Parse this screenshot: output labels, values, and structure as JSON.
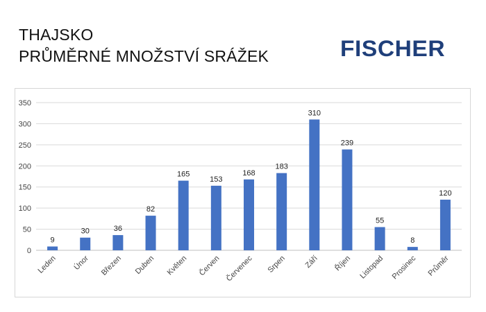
{
  "title_line1": "THAJSKO",
  "title_line2": "PRŮMĚRNÉ MNOŽSTVÍ SRÁŽEK",
  "logo_text": "FISCHER",
  "colors": {
    "bar": "#4472c4",
    "grid": "#d9d9d9",
    "logo": "#1f3f7a"
  },
  "chart_data": {
    "type": "bar",
    "categories": [
      "Leden",
      "Únor",
      "Březen",
      "Duben",
      "Květen",
      "Červen",
      "Červenec",
      "Srpen",
      "Září",
      "Říjen",
      "Listopad",
      "Prosinec",
      "Průměr"
    ],
    "values": [
      9,
      30,
      36,
      82,
      165,
      153,
      168,
      183,
      310,
      239,
      55,
      8,
      120
    ],
    "ylim": [
      0,
      350
    ],
    "yticks": [
      0,
      50,
      100,
      150,
      200,
      250,
      300,
      350
    ],
    "grid": true,
    "data_labels": true
  }
}
